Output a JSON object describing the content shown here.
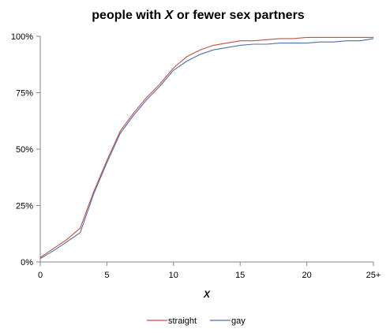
{
  "chart_data": {
    "type": "line",
    "title": {
      "prefix": "people with ",
      "variable": "X",
      "suffix": " or fewer sex partners"
    },
    "xlabel": "X",
    "ylabel": "",
    "xlim": [
      0,
      25
    ],
    "ylim": [
      0,
      100
    ],
    "x_ticks": [
      {
        "value": 0,
        "label": "0"
      },
      {
        "value": 5,
        "label": "5"
      },
      {
        "value": 10,
        "label": "10"
      },
      {
        "value": 15,
        "label": "15"
      },
      {
        "value": 20,
        "label": "20"
      },
      {
        "value": 25,
        "label": "25+"
      }
    ],
    "y_ticks": [
      {
        "value": 0,
        "label": "0%"
      },
      {
        "value": 25,
        "label": "25%"
      },
      {
        "value": 50,
        "label": "50%"
      },
      {
        "value": 75,
        "label": "75%"
      },
      {
        "value": 100,
        "label": "100%"
      }
    ],
    "grid": false,
    "legend_position": "bottom",
    "x": [
      0,
      1,
      2,
      3,
      4,
      5,
      6,
      7,
      8,
      9,
      10,
      11,
      12,
      13,
      14,
      15,
      16,
      17,
      18,
      19,
      20,
      21,
      22,
      23,
      24,
      25
    ],
    "series": [
      {
        "name": "straight",
        "color": "#c0504d",
        "values": [
          2,
          6,
          10,
          15,
          31,
          45,
          58,
          66,
          73,
          79,
          86,
          91,
          94,
          96,
          97,
          98,
          98,
          98.5,
          99,
          99,
          99.5,
          99.5,
          99.5,
          99.5,
          99.5,
          99.5
        ]
      },
      {
        "name": "gay",
        "color": "#4f6fa8",
        "values": [
          1.5,
          5,
          9,
          13,
          30,
          44,
          57,
          65,
          72,
          78,
          85,
          89,
          92,
          94,
          95,
          96,
          96.5,
          96.5,
          97,
          97,
          97,
          97.5,
          97.5,
          98,
          98,
          99
        ]
      }
    ]
  }
}
